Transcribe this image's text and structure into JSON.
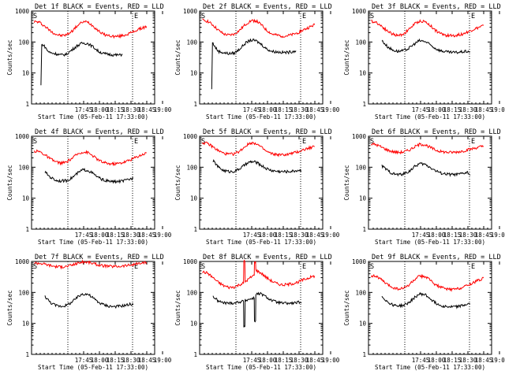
{
  "page": {
    "background": "#ffffff"
  },
  "style": {
    "events_color": "#000000",
    "lld_color": "#ff0000",
    "axis_color": "#000000"
  },
  "shared_axes": {
    "ylabel": "Counts/sec",
    "xlabel": "Start Time (05-Feb-11 17:33:00)",
    "x_ticks": [
      "17:45",
      "18:00",
      "18:15",
      "18:30",
      "18:45",
      "19:00"
    ],
    "y_ticks": [
      "1",
      "10",
      "100",
      "1000"
    ],
    "marker_S": "S",
    "marker_E": "E"
  },
  "chart_data": [
    {
      "type": "line",
      "title": "Det 1f BLACK = Events, RED = LLD",
      "xlabel": "Start Time (05-Feb-11 17:33:00)",
      "ylabel": "Counts/sec",
      "x_ticks": [
        "17:45",
        "18:00",
        "18:15",
        "18:30",
        "18:45",
        "19:00"
      ],
      "ylim": [
        1,
        1000
      ],
      "yscale": "log",
      "grid": false,
      "x_range_min": [
        0,
        42
      ],
      "series": [
        {
          "color": "#ff0000",
          "x": [
            0,
            2,
            4,
            6,
            8,
            10,
            12,
            14,
            16,
            18,
            20,
            22,
            24,
            26,
            28,
            30,
            32,
            34,
            36,
            38,
            40,
            42
          ],
          "values": [
            460,
            430,
            320,
            230,
            180,
            160,
            170,
            220,
            330,
            440,
            450,
            330,
            230,
            175,
            160,
            150,
            155,
            170,
            195,
            235,
            275,
            320
          ]
        },
        {
          "color": "#000000",
          "x": [
            2.5,
            2.8,
            3.2,
            4,
            5,
            6,
            8,
            10,
            12,
            14,
            16,
            18,
            20,
            22,
            24,
            26,
            28,
            30,
            32,
            33
          ],
          "values": [
            4,
            80,
            82,
            70,
            52,
            45,
            42,
            38,
            40,
            55,
            75,
            92,
            90,
            70,
            50,
            42,
            40,
            38,
            38,
            40
          ]
        }
      ]
    },
    {
      "type": "line",
      "title": "Det 2f BLACK = Events, RED = LLD",
      "xlabel": "Start Time (05-Feb-11 17:33:00)",
      "ylabel": "Counts/sec",
      "x_ticks": [
        "17:45",
        "18:00",
        "18:15",
        "18:30",
        "18:45",
        "19:00"
      ],
      "ylim": [
        1,
        1000
      ],
      "yscale": "log",
      "grid": false,
      "x_range_min": [
        0,
        42
      ],
      "series": [
        {
          "color": "#ff0000",
          "x": [
            0,
            2,
            4,
            6,
            8,
            10,
            12,
            14,
            16,
            18,
            20,
            22,
            24,
            26,
            28,
            30,
            32,
            34,
            36,
            38,
            40,
            42
          ],
          "values": [
            510,
            470,
            350,
            240,
            180,
            165,
            180,
            240,
            360,
            480,
            490,
            360,
            240,
            180,
            165,
            155,
            160,
            175,
            205,
            250,
            300,
            360
          ]
        },
        {
          "color": "#000000",
          "x": [
            3.5,
            3.8,
            4.2,
            5,
            6,
            8,
            10,
            12,
            14,
            16,
            18,
            20,
            22,
            24,
            26,
            28,
            30,
            32,
            34,
            35
          ],
          "values": [
            3,
            95,
            85,
            65,
            50,
            45,
            42,
            44,
            60,
            90,
            115,
            110,
            85,
            60,
            50,
            48,
            46,
            46,
            50,
            52
          ]
        }
      ]
    },
    {
      "type": "line",
      "title": "Det 3f BLACK = Events, RED = LLD",
      "xlabel": "Start Time (05-Feb-11 17:33:00)",
      "ylabel": "Counts/sec",
      "x_ticks": [
        "17:45",
        "18:00",
        "18:15",
        "18:30",
        "18:45",
        "19:00"
      ],
      "ylim": [
        1,
        1000
      ],
      "yscale": "log",
      "grid": false,
      "x_range_min": [
        0,
        42
      ],
      "series": [
        {
          "color": "#ff0000",
          "x": [
            0,
            2,
            4,
            6,
            8,
            10,
            12,
            14,
            16,
            18,
            20,
            22,
            24,
            26,
            28,
            30,
            32,
            34,
            36,
            38,
            40,
            42
          ],
          "values": [
            470,
            430,
            320,
            230,
            180,
            160,
            180,
            250,
            370,
            470,
            460,
            350,
            240,
            185,
            165,
            160,
            165,
            180,
            210,
            250,
            290,
            340
          ]
        },
        {
          "color": "#000000",
          "x": [
            4,
            5,
            6,
            8,
            10,
            12,
            14,
            16,
            18,
            20,
            22,
            24,
            26,
            28,
            30,
            32,
            34,
            36,
            37
          ],
          "values": [
            110,
            90,
            72,
            55,
            50,
            52,
            62,
            85,
            110,
            105,
            82,
            62,
            52,
            48,
            46,
            46,
            48,
            50,
            48
          ]
        }
      ]
    },
    {
      "type": "line",
      "title": "Det 4f BLACK = Events, RED = LLD",
      "xlabel": "Start Time (05-Feb-11 17:33:00)",
      "ylabel": "Counts/sec",
      "x_ticks": [
        "17:45",
        "18:00",
        "18:15",
        "18:30",
        "18:45",
        "19:00"
      ],
      "ylim": [
        1,
        1000
      ],
      "yscale": "log",
      "grid": false,
      "x_range_min": [
        0,
        42
      ],
      "series": [
        {
          "color": "#ff0000",
          "x": [
            0,
            2,
            4,
            6,
            8,
            10,
            12,
            14,
            16,
            18,
            20,
            22,
            24,
            26,
            28,
            30,
            32,
            34,
            36,
            38,
            40,
            42
          ],
          "values": [
            330,
            320,
            250,
            185,
            150,
            135,
            145,
            190,
            260,
            310,
            300,
            230,
            170,
            140,
            130,
            128,
            135,
            150,
            175,
            210,
            250,
            290
          ]
        },
        {
          "color": "#000000",
          "x": [
            4,
            5,
            6,
            8,
            10,
            12,
            14,
            16,
            18,
            20,
            22,
            24,
            26,
            28,
            30,
            32,
            34,
            36,
            37
          ],
          "values": [
            70,
            58,
            48,
            38,
            36,
            37,
            45,
            62,
            82,
            80,
            62,
            46,
            38,
            35,
            34,
            35,
            37,
            42,
            44
          ]
        }
      ]
    },
    {
      "type": "line",
      "title": "Det 5f BLACK = Events, RED = LLD",
      "xlabel": "Start Time (05-Feb-11 17:33:00)",
      "ylabel": "Counts/sec",
      "x_ticks": [
        "17:45",
        "18:00",
        "18:15",
        "18:30",
        "18:45",
        "19:00"
      ],
      "ylim": [
        1,
        1000
      ],
      "yscale": "log",
      "grid": false,
      "x_range_min": [
        0,
        42
      ],
      "series": [
        {
          "color": "#ff0000",
          "x": [
            0,
            2,
            4,
            6,
            8,
            10,
            12,
            14,
            16,
            18,
            20,
            22,
            24,
            26,
            28,
            30,
            32,
            34,
            36,
            38,
            40,
            42
          ],
          "values": [
            620,
            580,
            450,
            340,
            280,
            260,
            270,
            330,
            470,
            610,
            600,
            440,
            320,
            270,
            255,
            250,
            260,
            285,
            320,
            370,
            420,
            470
          ]
        },
        {
          "color": "#000000",
          "x": [
            4,
            5,
            6,
            8,
            10,
            12,
            14,
            16,
            18,
            20,
            22,
            24,
            26,
            28,
            30,
            32,
            34,
            36,
            37
          ],
          "values": [
            160,
            130,
            100,
            78,
            72,
            74,
            90,
            120,
            150,
            145,
            115,
            90,
            78,
            74,
            72,
            72,
            75,
            80,
            78
          ]
        }
      ]
    },
    {
      "type": "line",
      "title": "Det 6f BLACK = Events, RED = LLD",
      "xlabel": "Start Time (05-Feb-11 17:33:00)",
      "ylabel": "Counts/sec",
      "x_ticks": [
        "17:45",
        "18:00",
        "18:15",
        "18:30",
        "18:45",
        "19:00"
      ],
      "ylim": [
        1,
        1000
      ],
      "yscale": "log",
      "grid": false,
      "x_range_min": [
        0,
        42
      ],
      "series": [
        {
          "color": "#ff0000",
          "x": [
            0,
            2,
            4,
            6,
            8,
            10,
            12,
            14,
            16,
            18,
            20,
            22,
            24,
            26,
            28,
            30,
            32,
            34,
            36,
            38,
            40,
            42
          ],
          "values": [
            560,
            530,
            440,
            360,
            320,
            300,
            310,
            350,
            440,
            540,
            540,
            440,
            360,
            320,
            305,
            300,
            310,
            330,
            360,
            400,
            440,
            480
          ]
        },
        {
          "color": "#000000",
          "x": [
            4,
            5,
            6,
            8,
            10,
            12,
            14,
            16,
            18,
            20,
            22,
            24,
            26,
            28,
            30,
            32,
            34,
            36,
            37
          ],
          "values": [
            110,
            95,
            80,
            62,
            58,
            60,
            72,
            100,
            130,
            125,
            100,
            78,
            65,
            60,
            58,
            58,
            62,
            68,
            55
          ]
        }
      ]
    },
    {
      "type": "line",
      "title": "Det 7f BLACK = Events, RED = LLD",
      "xlabel": "Start Time (05-Feb-11 17:33:00)",
      "ylabel": "Counts/sec",
      "x_ticks": [
        "17:45",
        "18:00",
        "18:15",
        "18:30",
        "18:45",
        "19:00"
      ],
      "ylim": [
        1,
        1000
      ],
      "yscale": "log",
      "grid": false,
      "x_range_min": [
        0,
        42
      ],
      "series": [
        {
          "color": "#ff0000",
          "x": [
            0,
            2,
            4,
            6,
            8,
            10,
            12,
            14,
            16,
            18,
            20,
            22,
            24,
            26,
            28,
            30,
            32,
            34,
            36,
            38,
            40,
            42
          ],
          "values": [
            900,
            880,
            820,
            740,
            690,
            670,
            690,
            760,
            870,
            960,
            950,
            860,
            770,
            720,
            700,
            690,
            700,
            730,
            770,
            820,
            870,
            920
          ]
        },
        {
          "color": "#000000",
          "x": [
            4,
            5,
            6,
            8,
            10,
            12,
            14,
            16,
            18,
            20,
            22,
            24,
            26,
            28,
            30,
            32,
            34,
            36,
            37
          ],
          "values": [
            75,
            60,
            48,
            38,
            36,
            38,
            48,
            68,
            90,
            88,
            66,
            48,
            40,
            36,
            35,
            36,
            38,
            42,
            40
          ]
        }
      ]
    },
    {
      "type": "line",
      "title": "Det 8f BLACK = Events, RED = LLD",
      "xlabel": "Start Time (05-Feb-11 17:33:00)",
      "ylabel": "Counts/sec",
      "x_ticks": [
        "17:45",
        "18:00",
        "18:15",
        "18:30",
        "18:45",
        "19:00"
      ],
      "ylim": [
        1,
        1000
      ],
      "yscale": "log",
      "grid": false,
      "x_range_min": [
        0,
        42
      ],
      "series": [
        {
          "color": "#ff0000",
          "x": [
            0,
            2,
            4,
            6,
            8,
            10,
            12,
            14,
            15.4,
            15.5,
            15.9,
            16,
            18,
            19.4,
            19.5,
            19.9,
            20,
            22,
            24,
            26,
            28,
            30,
            32,
            34,
            36,
            38,
            40,
            42
          ],
          "values": [
            460,
            420,
            300,
            210,
            165,
            145,
            150,
            180,
            200,
            1000,
            1000,
            220,
            300,
            360,
            1000,
            1000,
            520,
            420,
            300,
            230,
            190,
            175,
            180,
            195,
            220,
            260,
            300,
            340
          ]
        },
        {
          "color": "#000000",
          "x": [
            4,
            5,
            6,
            8,
            10,
            12,
            14,
            15.4,
            15.5,
            15.9,
            16,
            18,
            19.4,
            19.5,
            19.9,
            20,
            22,
            24,
            26,
            28,
            30,
            32,
            34,
            36,
            37
          ],
          "values": [
            75,
            62,
            52,
            46,
            45,
            46,
            50,
            52,
            8,
            8,
            55,
            62,
            66,
            12,
            12,
            88,
            90,
            70,
            55,
            48,
            45,
            44,
            45,
            48,
            45
          ]
        }
      ]
    },
    {
      "type": "line",
      "title": "Det 9f BLACK = Events, RED = LLD",
      "xlabel": "Start Time (05-Feb-11 17:33:00)",
      "ylabel": "Counts/sec",
      "x_ticks": [
        "17:45",
        "18:00",
        "18:15",
        "18:30",
        "18:45",
        "19:00"
      ],
      "ylim": [
        1,
        1000
      ],
      "yscale": "log",
      "grid": false,
      "x_range_min": [
        0,
        42
      ],
      "series": [
        {
          "color": "#ff0000",
          "x": [
            0,
            2,
            4,
            6,
            8,
            10,
            12,
            14,
            16,
            18,
            20,
            22,
            24,
            26,
            28,
            30,
            32,
            34,
            36,
            38,
            40,
            42
          ],
          "values": [
            350,
            330,
            250,
            180,
            145,
            130,
            135,
            170,
            250,
            330,
            330,
            250,
            180,
            145,
            130,
            125,
            130,
            145,
            170,
            205,
            245,
            290
          ]
        },
        {
          "color": "#000000",
          "x": [
            4,
            5,
            6,
            8,
            10,
            12,
            14,
            16,
            18,
            20,
            22,
            24,
            26,
            28,
            30,
            32,
            34,
            36,
            37
          ],
          "values": [
            75,
            62,
            50,
            40,
            37,
            38,
            46,
            66,
            88,
            86,
            64,
            46,
            38,
            35,
            34,
            35,
            37,
            42,
            43
          ]
        }
      ]
    }
  ]
}
